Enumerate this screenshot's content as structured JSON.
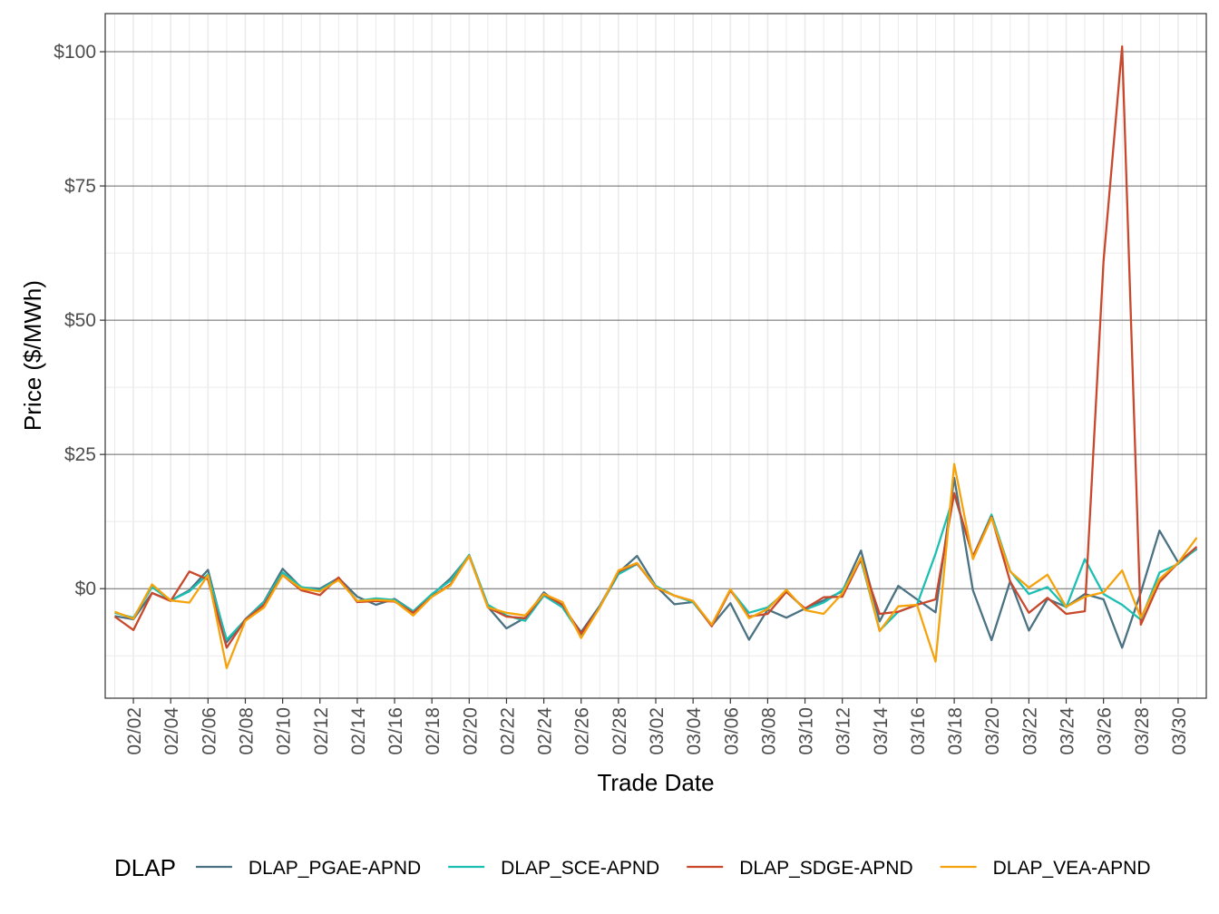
{
  "chart_data": {
    "type": "line",
    "x_label": "Trade Date",
    "y_label": "Price ($/MWh)",
    "legend_title": "DLAP",
    "legend_position": "bottom",
    "grid": true,
    "categories": [
      null,
      "02/02",
      null,
      "02/04",
      null,
      "02/06",
      null,
      "02/08",
      null,
      "02/10",
      null,
      "02/12",
      null,
      "02/14",
      null,
      "02/16",
      null,
      "02/18",
      null,
      "02/20",
      null,
      "02/22",
      null,
      "02/24",
      null,
      "02/26",
      null,
      "02/28",
      null,
      "03/02",
      null,
      "03/04",
      null,
      "03/06",
      null,
      "03/08",
      null,
      "03/10",
      null,
      "03/12",
      null,
      "03/14",
      null,
      "03/16",
      null,
      "03/18",
      null,
      "03/20",
      null,
      "03/22",
      null,
      "03/24",
      null,
      "03/26",
      null,
      "03/28",
      null,
      "03/30",
      null
    ],
    "ylim": [
      -20.4,
      107.1
    ],
    "yticks": [
      {
        "value": 0,
        "label": "$0"
      },
      {
        "value": 25,
        "label": "$25"
      },
      {
        "value": 50,
        "label": "$50"
      },
      {
        "value": 75,
        "label": "$75"
      },
      {
        "value": 100,
        "label": "$100"
      }
    ],
    "series": [
      {
        "name": "DLAP_PGAE-APND",
        "color": "#4a7282",
        "values": [
          -5.1,
          -5.7,
          -0.8,
          -2.2,
          -0.3,
          3.5,
          -10,
          -5.7,
          -2.4,
          3.7,
          0.2,
          0,
          2,
          -1.5,
          -3,
          -1.9,
          -4.2,
          -1.2,
          1.9,
          6.1,
          -3.4,
          -7.4,
          -5.4,
          -0.7,
          -3.4,
          -8.1,
          -3.2,
          3,
          6.1,
          0.5,
          -2.9,
          -2.5,
          -6.9,
          -2.7,
          -9.5,
          -3.9,
          -5.4,
          -3.7,
          -2.2,
          -0.5,
          7.1,
          -6.1,
          0.5,
          -2,
          -4.4,
          20.6,
          -0.3,
          -9.6,
          1.4,
          -7.8,
          -1.9,
          -3.4,
          -1,
          -2,
          -11,
          -0.7,
          10.8,
          4.9,
          7.4
        ]
      },
      {
        "name": "DLAP_SCE-APND",
        "color": "#1cbfb1",
        "values": [
          -4.5,
          -5.4,
          0.3,
          -2.2,
          -0.5,
          2.7,
          -9.5,
          -5.8,
          -2.5,
          3.0,
          0.3,
          -0.3,
          1.9,
          -2.3,
          -1.8,
          -2.1,
          -4.2,
          -1,
          1.5,
          6.3,
          -3,
          -5,
          -6,
          -1.3,
          -3.5,
          -8.7,
          -3.4,
          2.7,
          4.6,
          0.5,
          -1.3,
          -2.5,
          -6.9,
          -0.2,
          -4.5,
          -3.5,
          -0.5,
          -3.9,
          -2.6,
          -0.3,
          5.3,
          -7.8,
          -4.3,
          -3,
          6.5,
          17.5,
          6,
          13.8,
          3.3,
          -1,
          0.3,
          -3.5,
          5.5,
          -1,
          -3,
          -5.8,
          3,
          4.6,
          7.5
        ]
      },
      {
        "name": "DLAP_SDGE-APND",
        "color": "#c9472a",
        "values": [
          -5.2,
          -7.7,
          -0.8,
          -2.3,
          3.2,
          1.7,
          -11,
          -5.8,
          -3,
          2.5,
          -0.3,
          -1.2,
          2.1,
          -2.5,
          -2.3,
          -2.4,
          -4.5,
          -1.5,
          0.8,
          6.1,
          -3.5,
          -5.2,
          -5.5,
          -1,
          -3,
          -8.4,
          -3.5,
          3.2,
          4.7,
          0.2,
          -1.3,
          -2.3,
          -7,
          -0.3,
          -5.2,
          -4.7,
          -0.6,
          -3.7,
          -1.6,
          -1.5,
          5.5,
          -4.7,
          -4.3,
          -3,
          -2,
          17.8,
          6,
          13.4,
          1.3,
          -4.5,
          -1.7,
          -4.7,
          -4.2,
          61,
          101,
          -6.7,
          1.2,
          4.8,
          7.8
        ]
      },
      {
        "name": "DLAP_VEA-APND",
        "color": "#f5a30d",
        "values": [
          -4.3,
          -5.6,
          0.8,
          -2.2,
          -2.6,
          2.5,
          -14.8,
          -6,
          -3.5,
          2.5,
          0,
          -0.5,
          1.6,
          -2.3,
          -2.1,
          -2.3,
          -5,
          -1.5,
          0.6,
          6.1,
          -3.5,
          -4.5,
          -5,
          -1,
          -2.5,
          -9.2,
          -3.5,
          3.4,
          4.8,
          0.3,
          -1.3,
          -2.3,
          -6.7,
          -0.1,
          -5.5,
          -3.8,
          -0.2,
          -4,
          -4.7,
          -0.9,
          5.8,
          -7.9,
          -3.3,
          -3,
          -13.6,
          23.2,
          5.5,
          13.2,
          3.2,
          0.2,
          2.6,
          -3.4,
          -1.5,
          -0.7,
          3.4,
          -5.4,
          1.8,
          4.8,
          9.5
        ]
      }
    ]
  }
}
